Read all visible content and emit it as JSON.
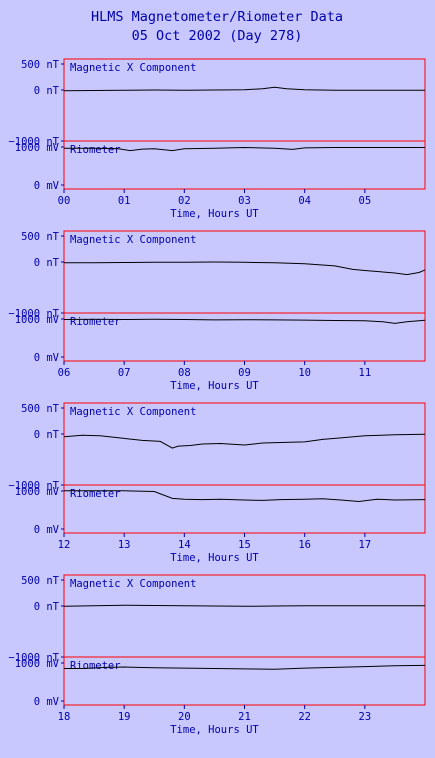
{
  "title": "HLMS Magnetometer/Riometer Data",
  "subtitle": "05 Oct 2002 (Day 278)",
  "colors": {
    "background": "#c8c8ff",
    "frame": "#ff0000",
    "text": "#0000aa",
    "trace": "#000000"
  },
  "chart_data": [
    {
      "type": "line",
      "xlabel": "Time, Hours UT",
      "x_ticks": [
        "00",
        "01",
        "02",
        "03",
        "04",
        "05"
      ],
      "xlim": [
        0,
        6
      ],
      "panels": [
        {
          "name": "Magnetic X Component",
          "unit": "nT",
          "y_ticks": [
            {
              "label": "500 nT",
              "value": 500
            },
            {
              "label": "0 nT",
              "value": 0
            },
            {
              "label": "-1000 nT",
              "value": -1000
            }
          ],
          "ylim": [
            -1000,
            600
          ],
          "series": [
            {
              "x": [
                0,
                0.5,
                1,
                1.5,
                2,
                2.5,
                3,
                3.3,
                3.5,
                3.7,
                4,
                4.5,
                5,
                5.5,
                6
              ],
              "y": [
                -20,
                -15,
                -10,
                -5,
                -10,
                -5,
                0,
                20,
                50,
                20,
                0,
                -10,
                -10,
                -10,
                -10
              ]
            }
          ]
        },
        {
          "name": "Riometer",
          "unit": "mV",
          "y_ticks": [
            {
              "label": "1000 mV",
              "value": 1000
            },
            {
              "label": "0 mV",
              "value": 0
            }
          ],
          "ylim": [
            -100,
            1150
          ],
          "series": [
            {
              "x": [
                0,
                0.5,
                0.9,
                1.1,
                1.3,
                1.5,
                1.8,
                2,
                2.5,
                3,
                3.5,
                3.8,
                4,
                4.5,
                5,
                5.5,
                6
              ],
              "y": [
                960,
                960,
                950,
                900,
                940,
                950,
                900,
                950,
                960,
                980,
                960,
                930,
                970,
                980,
                980,
                980,
                980
              ]
            }
          ]
        }
      ]
    },
    {
      "type": "line",
      "xlabel": "Time, Hours UT",
      "x_ticks": [
        "06",
        "07",
        "08",
        "09",
        "10",
        "11"
      ],
      "xlim": [
        6,
        12
      ],
      "panels": [
        {
          "name": "Magnetic X Component",
          "unit": "nT",
          "y_ticks": [
            {
              "label": "500 nT",
              "value": 500
            },
            {
              "label": "0 nT",
              "value": 0
            },
            {
              "label": "-1000 nT",
              "value": -1000
            }
          ],
          "ylim": [
            -1000,
            600
          ],
          "series": [
            {
              "x": [
                6,
                6.5,
                7,
                7.5,
                8,
                8.5,
                9,
                9.5,
                10,
                10.5,
                10.8,
                11,
                11.3,
                11.5,
                11.7,
                11.9,
                12
              ],
              "y": [
                -20,
                -20,
                -15,
                -10,
                -10,
                -5,
                -10,
                -20,
                -40,
                -80,
                -150,
                -170,
                -200,
                -220,
                -250,
                -210,
                -160
              ]
            }
          ]
        },
        {
          "name": "Riometer",
          "unit": "mV",
          "y_ticks": [
            {
              "label": "1000 mV",
              "value": 1000
            },
            {
              "label": "0 mV",
              "value": 0
            }
          ],
          "ylim": [
            -100,
            1150
          ],
          "series": [
            {
              "x": [
                6,
                6.5,
                7,
                7.5,
                8,
                8.5,
                9,
                9.5,
                10,
                10.5,
                11,
                11.3,
                11.5,
                11.7,
                11.9,
                12
              ],
              "y": [
                980,
                985,
                980,
                985,
                980,
                970,
                975,
                970,
                965,
                955,
                950,
                920,
                880,
                920,
                950,
                960
              ]
            }
          ]
        }
      ]
    },
    {
      "type": "line",
      "xlabel": "Time, Hours UT",
      "x_ticks": [
        "12",
        "13",
        "14",
        "15",
        "16",
        "17"
      ],
      "xlim": [
        12,
        18
      ],
      "panels": [
        {
          "name": "Magnetic X Component",
          "unit": "nT",
          "y_ticks": [
            {
              "label": "500 nT",
              "value": 500
            },
            {
              "label": "0 nT",
              "value": 0
            },
            {
              "label": "-1000 nT",
              "value": -1000
            }
          ],
          "ylim": [
            -1000,
            600
          ],
          "series": [
            {
              "x": [
                12,
                12.3,
                12.6,
                13,
                13.3,
                13.6,
                13.8,
                13.9,
                14.1,
                14.3,
                14.6,
                15,
                15.3,
                15.6,
                16,
                16.3,
                16.6,
                17,
                17.5,
                18
              ],
              "y": [
                -60,
                -30,
                -40,
                -90,
                -130,
                -150,
                -280,
                -240,
                -230,
                -200,
                -190,
                -220,
                -180,
                -170,
                -160,
                -110,
                -80,
                -40,
                -20,
                -10
              ]
            }
          ]
        },
        {
          "name": "Riometer",
          "unit": "mV",
          "y_ticks": [
            {
              "label": "1000 mV",
              "value": 1000
            },
            {
              "label": "0 mV",
              "value": 0
            }
          ],
          "ylim": [
            -100,
            1150
          ],
          "series": [
            {
              "x": [
                12,
                12.5,
                13,
                13.5,
                13.8,
                14,
                14.3,
                14.6,
                15,
                15.3,
                15.6,
                16,
                16.3,
                16.6,
                16.9,
                17.2,
                17.5,
                18
              ],
              "y": [
                1000,
                1000,
                1000,
                980,
                800,
                780,
                770,
                780,
                760,
                750,
                770,
                780,
                790,
                760,
                720,
                780,
                760,
                770
              ]
            }
          ]
        }
      ]
    },
    {
      "type": "line",
      "xlabel": "Time, Hours UT",
      "x_ticks": [
        "18",
        "19",
        "20",
        "21",
        "22",
        "23"
      ],
      "xlim": [
        18,
        24
      ],
      "panels": [
        {
          "name": "Magnetic X Component",
          "unit": "nT",
          "y_ticks": [
            {
              "label": "500 nT",
              "value": 500
            },
            {
              "label": "0 nT",
              "value": 0
            },
            {
              "label": "-1000 nT",
              "value": -1000
            }
          ],
          "ylim": [
            -1000,
            600
          ],
          "series": [
            {
              "x": [
                18,
                18.5,
                19,
                19.5,
                20,
                20.5,
                21,
                21.5,
                22,
                22.5,
                23,
                23.5,
                24
              ],
              "y": [
                -10,
                0,
                10,
                5,
                0,
                -5,
                -10,
                -5,
                0,
                0,
                0,
                0,
                0
              ]
            }
          ]
        },
        {
          "name": "Riometer",
          "unit": "mV",
          "y_ticks": [
            {
              "label": "1000 mV",
              "value": 1000
            },
            {
              "label": "0 mV",
              "value": 0
            }
          ],
          "ylim": [
            -100,
            1150
          ],
          "series": [
            {
              "x": [
                18,
                18.3,
                18.7,
                19,
                19.5,
                20,
                20.5,
                21,
                21.5,
                22,
                22.5,
                23,
                23.5,
                24
              ],
              "y": [
                850,
                850,
                880,
                890,
                870,
                860,
                850,
                840,
                830,
                860,
                880,
                900,
                920,
                930
              ]
            }
          ]
        }
      ]
    }
  ]
}
